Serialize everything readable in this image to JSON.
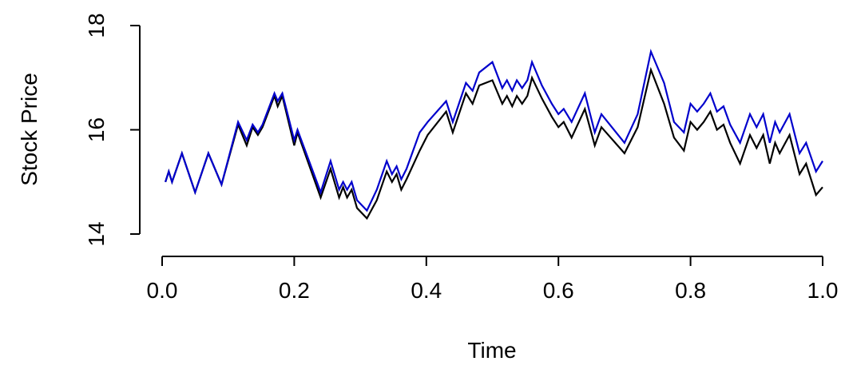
{
  "chart_data": {
    "type": "line",
    "title": "",
    "xlabel": "Time",
    "ylabel": "Stock Price",
    "xlim": [
      0,
      1
    ],
    "ylim": [
      14,
      18
    ],
    "xticks": [
      0.0,
      0.2,
      0.4,
      0.6,
      0.8,
      1.0
    ],
    "xtick_labels": [
      "0.0",
      "0.2",
      "0.4",
      "0.6",
      "0.8",
      "1.0"
    ],
    "yticks": [
      14,
      16,
      18
    ],
    "ytick_labels": [
      "14",
      "16",
      "18"
    ],
    "grid": false,
    "legend": false,
    "series": [
      {
        "color": "#000000",
        "x": [
          0.005,
          0.01,
          0.015,
          0.03,
          0.05,
          0.07,
          0.09,
          0.115,
          0.128,
          0.137,
          0.145,
          0.152,
          0.17,
          0.175,
          0.182,
          0.2,
          0.205,
          0.24,
          0.255,
          0.268,
          0.274,
          0.28,
          0.287,
          0.295,
          0.31,
          0.325,
          0.34,
          0.348,
          0.355,
          0.362,
          0.37,
          0.39,
          0.402,
          0.43,
          0.44,
          0.46,
          0.47,
          0.48,
          0.5,
          0.515,
          0.522,
          0.53,
          0.537,
          0.545,
          0.553,
          0.56,
          0.575,
          0.59,
          0.6,
          0.608,
          0.62,
          0.64,
          0.655,
          0.665,
          0.7,
          0.72,
          0.74,
          0.76,
          0.775,
          0.79,
          0.8,
          0.81,
          0.82,
          0.83,
          0.84,
          0.85,
          0.86,
          0.875,
          0.89,
          0.9,
          0.91,
          0.92,
          0.928,
          0.935,
          0.95,
          0.965,
          0.975,
          0.99,
          1.0
        ],
        "y": [
          15.0,
          15.2,
          15.0,
          15.55,
          14.8,
          15.55,
          14.95,
          16.1,
          15.7,
          16.05,
          15.9,
          16.05,
          16.65,
          16.45,
          16.65,
          15.7,
          15.95,
          14.7,
          15.25,
          14.7,
          14.9,
          14.7,
          14.85,
          14.5,
          14.3,
          14.65,
          15.2,
          15.0,
          15.15,
          14.85,
          15.05,
          15.6,
          15.9,
          16.35,
          15.95,
          16.7,
          16.5,
          16.85,
          16.95,
          16.5,
          16.65,
          16.45,
          16.65,
          16.5,
          16.65,
          17.0,
          16.6,
          16.25,
          16.05,
          16.15,
          15.85,
          16.4,
          15.7,
          16.05,
          15.55,
          16.05,
          17.15,
          16.5,
          15.85,
          15.6,
          16.15,
          16.0,
          16.15,
          16.35,
          16.0,
          16.1,
          15.75,
          15.35,
          15.9,
          15.65,
          15.9,
          15.35,
          15.75,
          15.55,
          15.9,
          15.15,
          15.35,
          14.75,
          14.9
        ]
      },
      {
        "color": "#0000cc",
        "x": [
          0.005,
          0.01,
          0.015,
          0.03,
          0.05,
          0.07,
          0.09,
          0.115,
          0.128,
          0.137,
          0.145,
          0.152,
          0.17,
          0.175,
          0.182,
          0.2,
          0.205,
          0.24,
          0.255,
          0.268,
          0.274,
          0.28,
          0.287,
          0.295,
          0.31,
          0.325,
          0.34,
          0.348,
          0.355,
          0.362,
          0.37,
          0.39,
          0.402,
          0.43,
          0.44,
          0.46,
          0.47,
          0.48,
          0.5,
          0.515,
          0.522,
          0.53,
          0.537,
          0.545,
          0.553,
          0.56,
          0.575,
          0.59,
          0.6,
          0.608,
          0.62,
          0.64,
          0.655,
          0.665,
          0.7,
          0.72,
          0.74,
          0.76,
          0.775,
          0.79,
          0.8,
          0.81,
          0.82,
          0.83,
          0.84,
          0.85,
          0.86,
          0.875,
          0.89,
          0.9,
          0.91,
          0.92,
          0.928,
          0.935,
          0.95,
          0.965,
          0.975,
          0.99,
          1.0
        ],
        "y": [
          15.0,
          15.2,
          15.0,
          15.55,
          14.8,
          15.55,
          14.95,
          16.15,
          15.8,
          16.1,
          15.95,
          16.1,
          16.7,
          16.55,
          16.7,
          15.8,
          16.0,
          14.8,
          15.4,
          14.85,
          15.0,
          14.85,
          15.0,
          14.65,
          14.45,
          14.85,
          15.4,
          15.15,
          15.3,
          15.05,
          15.25,
          15.95,
          16.15,
          16.55,
          16.15,
          16.9,
          16.75,
          17.1,
          17.3,
          16.8,
          16.95,
          16.75,
          16.95,
          16.8,
          16.95,
          17.3,
          16.85,
          16.5,
          16.3,
          16.4,
          16.15,
          16.7,
          15.95,
          16.3,
          15.75,
          16.3,
          17.5,
          16.9,
          16.15,
          15.95,
          16.5,
          16.35,
          16.5,
          16.7,
          16.35,
          16.45,
          16.1,
          15.75,
          16.3,
          16.05,
          16.3,
          15.75,
          16.15,
          15.95,
          16.3,
          15.55,
          15.75,
          15.2,
          15.4
        ]
      }
    ]
  }
}
